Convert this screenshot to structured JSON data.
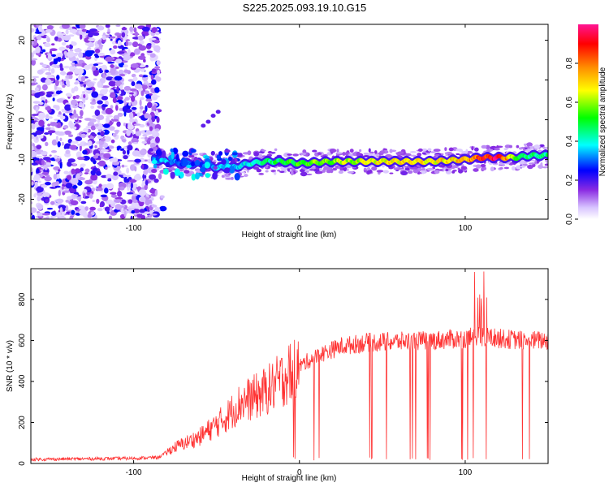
{
  "title": "S225.2025.093.19.10.G15",
  "chart_data": [
    {
      "type": "heatmap",
      "xlabel": "Height of straight line (km)",
      "ylabel": "Frequency (Hz)",
      "xlim": [
        -162,
        150
      ],
      "ylim": [
        -25,
        24
      ],
      "xticks": [
        -100,
        0,
        100
      ],
      "yticks": [
        -20,
        -10,
        0,
        10,
        20
      ],
      "colorbar": {
        "label": "Normalized spectral amplitude",
        "range": [
          0,
          1
        ],
        "ticks": [
          "0.0",
          "0.2",
          "0.4",
          "0.6",
          "0.8"
        ],
        "colors": [
          "#ffffff",
          "#8a2be2",
          "#0000ff",
          "#00ffff",
          "#00ff00",
          "#ffff00",
          "#ff8c00",
          "#ff0000",
          "#ff1493"
        ]
      },
      "ridge": {
        "description_points_x": [
          -88,
          -80,
          -70,
          -60,
          -50,
          -40,
          -30,
          -20,
          -10,
          0,
          20,
          40,
          60,
          80,
          100,
          110,
          120,
          130,
          140,
          150
        ],
        "frequency_hz": [
          -10,
          -10.5,
          -11,
          -11,
          -12,
          -12,
          -11,
          -10.5,
          -10.5,
          -11,
          -10.5,
          -10.5,
          -10.5,
          -10.5,
          -10,
          -9.5,
          -9.5,
          -9.5,
          -9,
          -9
        ],
        "amplitude": [
          0.35,
          0.35,
          0.3,
          0.3,
          0.35,
          0.35,
          0.4,
          0.45,
          0.5,
          0.55,
          0.6,
          0.65,
          0.7,
          0.7,
          0.72,
          0.9,
          1.0,
          0.55,
          0.45,
          0.45
        ]
      }
    },
    {
      "type": "line",
      "xlabel": "Height of straight line (km)",
      "ylabel": "SNR (10 * v/v)",
      "xlim": [
        -162,
        150
      ],
      "ylim": [
        0,
        950
      ],
      "xticks": [
        -100,
        0,
        100
      ],
      "yticks": [
        0,
        200,
        400,
        600,
        800
      ],
      "color": "#ff3333",
      "trend_x": [
        -162,
        -100,
        -85,
        -75,
        -60,
        -45,
        -35,
        -25,
        -15,
        -5,
        5,
        15,
        25,
        40,
        60,
        80,
        100,
        110,
        120,
        135,
        150
      ],
      "trend_y": [
        20,
        25,
        30,
        80,
        130,
        220,
        300,
        330,
        380,
        450,
        500,
        540,
        570,
        590,
        595,
        600,
        610,
        620,
        610,
        600,
        600
      ]
    }
  ]
}
